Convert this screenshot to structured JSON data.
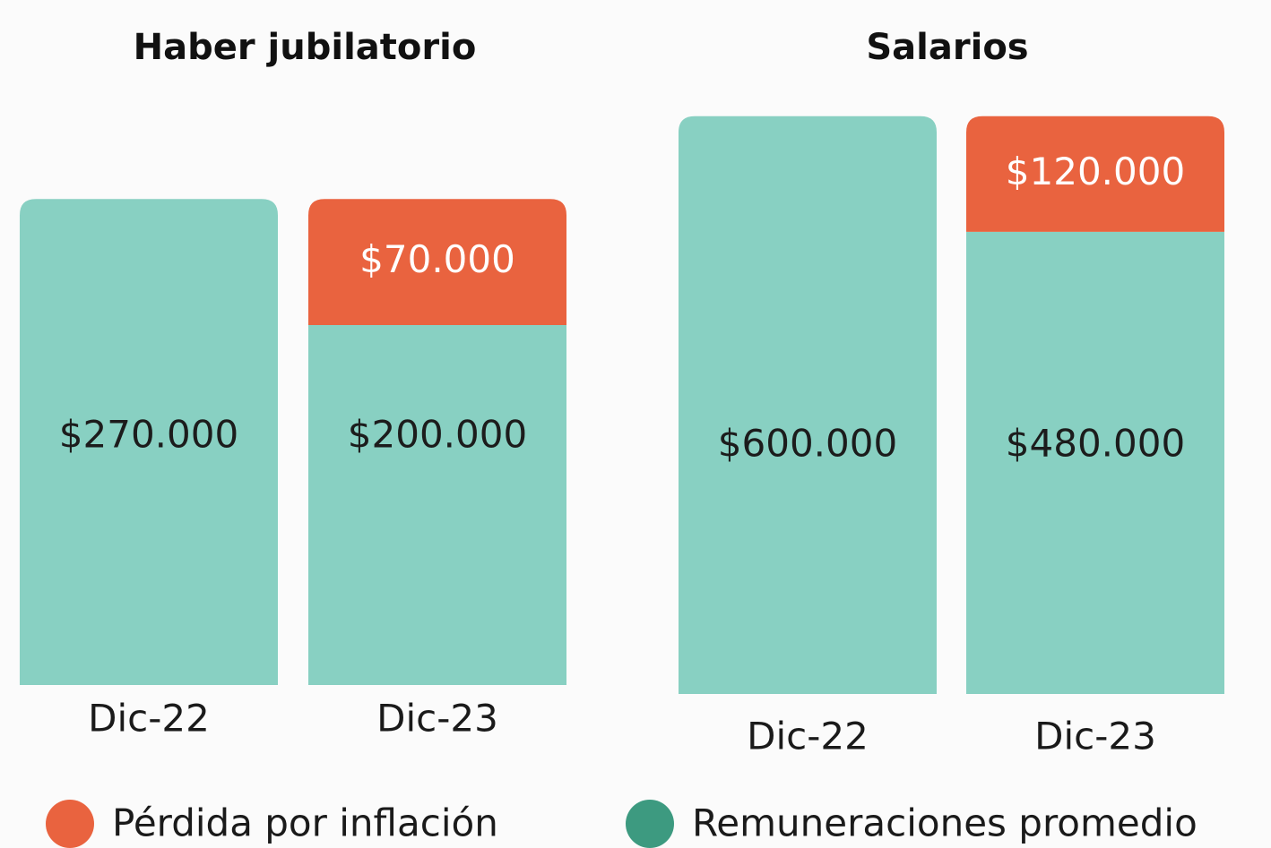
{
  "chart_data": [
    {
      "type": "bar",
      "stacked": true,
      "title": "Haber jubilatorio",
      "categories": [
        "Dic-22",
        "Dic-23"
      ],
      "series": [
        {
          "name": "Remuneraciones promedio",
          "color": "#88d0c2",
          "legend_color": "#3d9a80",
          "values": [
            270000,
            200000
          ],
          "value_labels": [
            "$270.000",
            "$200.000"
          ]
        },
        {
          "name": "Pérdida por inflación",
          "color": "#e9633f",
          "legend_color": "#e9633f",
          "values": [
            null,
            70000
          ],
          "value_labels": [
            null,
            "$70.000"
          ]
        }
      ],
      "ylim": [
        0,
        300000
      ]
    },
    {
      "type": "bar",
      "stacked": true,
      "title": "Salarios",
      "categories": [
        "Dic-22",
        "Dic-23"
      ],
      "series": [
        {
          "color": "#88d0c2",
          "values": [
            600000,
            480000
          ],
          "value_labels": [
            "$600.000",
            "$480.000"
          ]
        },
        {
          "color": "#e9633f",
          "values": [
            null,
            120000
          ],
          "value_labels": [
            null,
            "$120.000"
          ]
        }
      ],
      "ylim": [
        0,
        650000
      ]
    }
  ]
}
